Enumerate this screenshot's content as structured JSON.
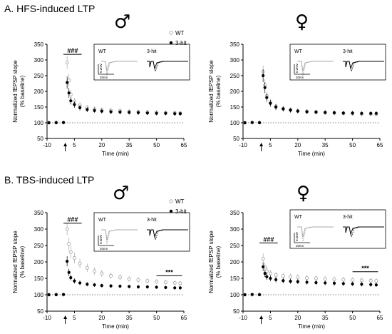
{
  "figure": {
    "section_a_title": "A. HFS-induced LTP",
    "section_b_title": "B. TBS-induced LTP",
    "male_symbol": "♂",
    "female_symbol": "♀"
  },
  "colors": {
    "wt": "#a8a8a8",
    "hit": "#000000",
    "baseline": "#555555"
  },
  "chart_data": [
    {
      "type": "scatter",
      "panel": "A-male",
      "xlabel": "Time (min)",
      "ylabel_line1": "Normalized fEPSP slope",
      "ylabel_line2": "(% baseline)",
      "xlim": [
        -10,
        65
      ],
      "ylim": [
        50,
        350
      ],
      "xticks": [
        -10,
        5,
        20,
        35,
        50,
        65
      ],
      "yticks": [
        50,
        100,
        150,
        200,
        250,
        300,
        350
      ],
      "legend_position": "top-right",
      "series": [
        {
          "name": "WT",
          "key": "wt",
          "points": [
            [
              -9,
              100
            ],
            [
              -5,
              101
            ],
            [
              -1,
              100
            ],
            [
              1,
              292
            ],
            [
              2,
              235
            ],
            [
              3,
              190
            ],
            [
              5,
              168
            ],
            [
              8,
              155
            ],
            [
              12,
              148
            ],
            [
              16,
              144
            ],
            [
              20,
              141
            ],
            [
              25,
              139
            ],
            [
              30,
              138
            ],
            [
              35,
              136
            ],
            [
              40,
              135
            ],
            [
              45,
              134
            ],
            [
              50,
              133
            ],
            [
              55,
              132
            ],
            [
              60,
              131
            ],
            [
              63,
              130
            ]
          ]
        },
        {
          "name": "3-hit",
          "key": "hit",
          "points": [
            [
              -9,
              100
            ],
            [
              -5,
              100
            ],
            [
              -1,
              101
            ],
            [
              1,
              228
            ],
            [
              2,
              195
            ],
            [
              3,
              170
            ],
            [
              5,
              158
            ],
            [
              8,
              148
            ],
            [
              12,
              142
            ],
            [
              16,
              139
            ],
            [
              20,
              137
            ],
            [
              25,
              135
            ],
            [
              30,
              134
            ],
            [
              35,
              133
            ],
            [
              40,
              132
            ],
            [
              45,
              131
            ],
            [
              50,
              130
            ],
            [
              55,
              130
            ],
            [
              60,
              129
            ],
            [
              63,
              129
            ]
          ]
        }
      ],
      "annotations": [
        {
          "text": "###",
          "x_from": -1,
          "x_to": 9,
          "y": 318
        }
      ],
      "inset": {
        "wt_label": "WT",
        "hit_label": "3-hit",
        "scale_v": "0.2mV",
        "scale_h": "20ms"
      },
      "stimulus_x": 0
    },
    {
      "type": "scatter",
      "panel": "A-female",
      "xlabel": "Time (min)",
      "ylabel_line1": "Normalized fEPSP slope",
      "ylabel_line2": "(% baseline)",
      "xlim": [
        -10,
        65
      ],
      "ylim": [
        50,
        350
      ],
      "xticks": [
        -10,
        5,
        20,
        35,
        50,
        65
      ],
      "yticks": [
        50,
        100,
        150,
        200,
        250,
        300,
        350
      ],
      "series": [
        {
          "name": "WT",
          "key": "wt",
          "points": [
            [
              -9,
              100
            ],
            [
              -5,
              100
            ],
            [
              -1,
              101
            ],
            [
              1,
              262
            ],
            [
              2,
              220
            ],
            [
              3,
              185
            ],
            [
              5,
              165
            ],
            [
              8,
              152
            ],
            [
              12,
              145
            ],
            [
              16,
              141
            ],
            [
              20,
              138
            ],
            [
              25,
              136
            ],
            [
              30,
              134
            ],
            [
              35,
              132
            ],
            [
              40,
              131
            ],
            [
              45,
              130
            ],
            [
              50,
              129
            ],
            [
              55,
              128
            ],
            [
              60,
              128
            ],
            [
              63,
              127
            ]
          ]
        },
        {
          "name": "3-hit",
          "key": "hit",
          "points": [
            [
              -9,
              100
            ],
            [
              -5,
              101
            ],
            [
              -1,
              100
            ],
            [
              1,
              250
            ],
            [
              2,
              212
            ],
            [
              3,
              180
            ],
            [
              5,
              162
            ],
            [
              8,
              150
            ],
            [
              12,
              144
            ],
            [
              16,
              140
            ],
            [
              20,
              137
            ],
            [
              25,
              135
            ],
            [
              30,
              134
            ],
            [
              35,
              133
            ],
            [
              40,
              132
            ],
            [
              45,
              131
            ],
            [
              50,
              131
            ],
            [
              55,
              130
            ],
            [
              60,
              130
            ],
            [
              63,
              130
            ]
          ]
        }
      ],
      "inset": {
        "wt_label": "WT",
        "hit_label": "3-hit",
        "scale_v": "0.2mV",
        "scale_h": "20ms"
      },
      "stimulus_x": 0
    },
    {
      "type": "scatter",
      "panel": "B-male",
      "xlabel": "Time (min)",
      "ylabel_line1": "Normalized fEPSP slope",
      "ylabel_line2": "(% baseline)",
      "xlim": [
        -10,
        65
      ],
      "ylim": [
        50,
        350
      ],
      "xticks": [
        -10,
        5,
        20,
        35,
        50,
        65
      ],
      "yticks": [
        50,
        100,
        150,
        200,
        250,
        300,
        350
      ],
      "legend_position": "top-right",
      "series": [
        {
          "name": "WT",
          "key": "wt",
          "points": [
            [
              -9,
              100
            ],
            [
              -5,
              101
            ],
            [
              -1,
              100
            ],
            [
              1,
              300
            ],
            [
              2,
              255
            ],
            [
              3,
              230
            ],
            [
              5,
              212
            ],
            [
              8,
              195
            ],
            [
              12,
              182
            ],
            [
              16,
              172
            ],
            [
              20,
              165
            ],
            [
              25,
              158
            ],
            [
              30,
              153
            ],
            [
              35,
              148
            ],
            [
              40,
              145
            ],
            [
              45,
              142
            ],
            [
              50,
              140
            ],
            [
              55,
              138
            ],
            [
              60,
              136
            ],
            [
              63,
              135
            ]
          ]
        },
        {
          "name": "3-hit",
          "key": "hit",
          "points": [
            [
              -9,
              100
            ],
            [
              -5,
              100
            ],
            [
              -1,
              101
            ],
            [
              1,
              202
            ],
            [
              2,
              168
            ],
            [
              3,
              152
            ],
            [
              5,
              142
            ],
            [
              8,
              136
            ],
            [
              12,
              132
            ],
            [
              16,
              130
            ],
            [
              20,
              128
            ],
            [
              25,
              127
            ],
            [
              30,
              126
            ],
            [
              35,
              125
            ],
            [
              40,
              124
            ],
            [
              45,
              124
            ],
            [
              50,
              123
            ],
            [
              55,
              122
            ],
            [
              60,
              121
            ],
            [
              63,
              121
            ]
          ]
        }
      ],
      "annotations": [
        {
          "text": "###",
          "x_from": -1,
          "x_to": 9,
          "y": 318
        },
        {
          "text": "***",
          "x_from": 50,
          "x_to": 64,
          "y": 158
        }
      ],
      "inset": {
        "wt_label": "WT",
        "hit_label": "3-hit",
        "scale_v": "0.2mV",
        "scale_h": "20ms"
      },
      "stimulus_x": 0
    },
    {
      "type": "scatter",
      "panel": "B-female",
      "xlabel": "Time (min)",
      "ylabel_line1": "Normalized fEPSP slope",
      "ylabel_line2": "(% baseline)",
      "xlim": [
        -10,
        65
      ],
      "ylim": [
        50,
        350
      ],
      "xticks": [
        -10,
        5,
        20,
        35,
        50,
        65
      ],
      "yticks": [
        50,
        100,
        150,
        200,
        250,
        300,
        350
      ],
      "series": [
        {
          "name": "WT",
          "key": "wt",
          "points": [
            [
              -9,
              100
            ],
            [
              -5,
              100
            ],
            [
              -1,
              101
            ],
            [
              1,
              210
            ],
            [
              2,
              185
            ],
            [
              3,
              172
            ],
            [
              5,
              165
            ],
            [
              8,
              160
            ],
            [
              12,
              157
            ],
            [
              16,
              155
            ],
            [
              20,
              153
            ],
            [
              25,
              151
            ],
            [
              30,
              150
            ],
            [
              35,
              148
            ],
            [
              40,
              147
            ],
            [
              45,
              146
            ],
            [
              50,
              145
            ],
            [
              55,
              144
            ],
            [
              60,
              143
            ],
            [
              63,
              142
            ]
          ]
        },
        {
          "name": "3-hit",
          "key": "hit",
          "points": [
            [
              -9,
              100
            ],
            [
              -5,
              101
            ],
            [
              -1,
              100
            ],
            [
              1,
              185
            ],
            [
              2,
              165
            ],
            [
              3,
              155
            ],
            [
              5,
              150
            ],
            [
              8,
              146
            ],
            [
              12,
              143
            ],
            [
              16,
              141
            ],
            [
              20,
              140
            ],
            [
              25,
              138
            ],
            [
              30,
              137
            ],
            [
              35,
              136
            ],
            [
              40,
              135
            ],
            [
              45,
              134
            ],
            [
              50,
              133
            ],
            [
              55,
              132
            ],
            [
              60,
              131
            ],
            [
              63,
              130
            ]
          ]
        }
      ],
      "annotations": [
        {
          "text": "###",
          "x_from": -1,
          "x_to": 9,
          "y": 258
        },
        {
          "text": "***",
          "x_from": 50,
          "x_to": 64,
          "y": 170
        }
      ],
      "inset": {
        "wt_label": "WT",
        "hit_label": "3-hit",
        "scale_v": "0.2mV",
        "scale_h": "20ms"
      },
      "stimulus_x": 0
    }
  ]
}
